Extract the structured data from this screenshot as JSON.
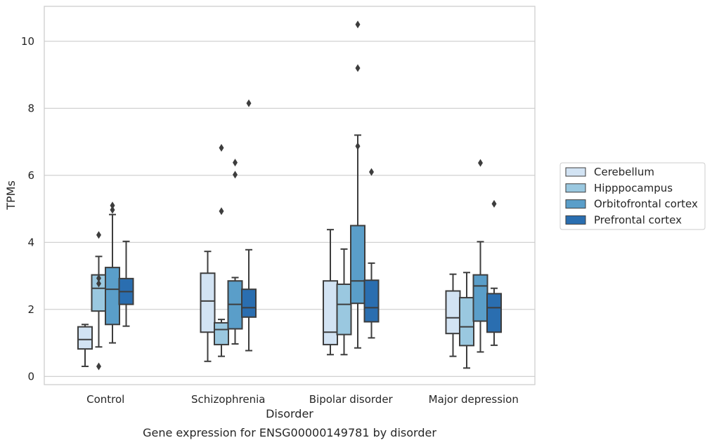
{
  "chart_data": {
    "type": "box",
    "title": "",
    "caption": "Gene expression for ENSG00000149781 by disorder",
    "xlabel": "Disorder",
    "ylabel": "TPMs",
    "ylim": [
      -0.25,
      11.05
    ],
    "yticks": [
      "0",
      "2",
      "4",
      "6",
      "8",
      "10"
    ],
    "grid": "horizontal",
    "legend_position": "right",
    "categories": [
      "Control",
      "Schizophrenia",
      "Bipolar disorder",
      "Major depression"
    ],
    "series": [
      {
        "name": "Cerebellum",
        "color": "#d2e3f3",
        "boxes": [
          {
            "whisker_low": 0.3,
            "q1": 0.82,
            "median": 1.1,
            "q3": 1.48,
            "whisker_high": 1.55,
            "outliers": []
          },
          {
            "whisker_low": 0.45,
            "q1": 1.32,
            "median": 2.25,
            "q3": 3.08,
            "whisker_high": 3.73,
            "outliers": []
          },
          {
            "whisker_low": 0.65,
            "q1": 0.95,
            "median": 1.32,
            "q3": 2.85,
            "whisker_high": 4.38,
            "outliers": []
          },
          {
            "whisker_low": 0.6,
            "q1": 1.28,
            "median": 1.75,
            "q3": 2.55,
            "whisker_high": 3.05,
            "outliers": []
          }
        ]
      },
      {
        "name": "Hipppocampus",
        "color": "#9ac8e0",
        "boxes": [
          {
            "whisker_low": 0.88,
            "q1": 1.95,
            "median": 2.63,
            "q3": 3.03,
            "whisker_high": 3.58,
            "outliers": [
              4.22,
              2.93,
              2.77,
              0.3
            ]
          },
          {
            "whisker_low": 0.6,
            "q1": 0.95,
            "median": 1.4,
            "q3": 1.6,
            "whisker_high": 1.7,
            "outliers": [
              6.82,
              4.93
            ]
          },
          {
            "whisker_low": 0.65,
            "q1": 1.25,
            "median": 2.15,
            "q3": 2.75,
            "whisker_high": 3.8,
            "outliers": []
          },
          {
            "whisker_low": 0.25,
            "q1": 0.92,
            "median": 1.48,
            "q3": 2.35,
            "whisker_high": 3.1,
            "outliers": []
          }
        ]
      },
      {
        "name": "Orbitofrontal cortex",
        "color": "#5a9ec9",
        "boxes": [
          {
            "whisker_low": 1.0,
            "q1": 1.55,
            "median": 2.6,
            "q3": 3.25,
            "whisker_high": 4.83,
            "outliers": [
              5.1,
              4.97
            ]
          },
          {
            "whisker_low": 0.97,
            "q1": 1.42,
            "median": 2.15,
            "q3": 2.85,
            "whisker_high": 2.95,
            "outliers": [
              6.38,
              6.02
            ]
          },
          {
            "whisker_low": 0.85,
            "q1": 2.18,
            "median": 2.85,
            "q3": 4.5,
            "whisker_high": 7.2,
            "outliers": [
              6.87,
              10.5,
              9.2
            ]
          },
          {
            "whisker_low": 0.73,
            "q1": 1.65,
            "median": 2.7,
            "q3": 3.03,
            "whisker_high": 4.02,
            "outliers": [
              6.37
            ]
          }
        ]
      },
      {
        "name": "Prefrontal cortex",
        "color": "#2a6eb0",
        "boxes": [
          {
            "whisker_low": 1.5,
            "q1": 2.15,
            "median": 2.53,
            "q3": 2.92,
            "whisker_high": 4.03,
            "outliers": []
          },
          {
            "whisker_low": 0.77,
            "q1": 1.77,
            "median": 2.05,
            "q3": 2.6,
            "whisker_high": 3.78,
            "outliers": [
              8.15
            ]
          },
          {
            "whisker_low": 1.15,
            "q1": 1.63,
            "median": 2.05,
            "q3": 2.87,
            "whisker_high": 3.38,
            "outliers": [
              6.1
            ]
          },
          {
            "whisker_low": 0.93,
            "q1": 1.32,
            "median": 2.05,
            "q3": 2.47,
            "whisker_high": 2.63,
            "outliers": [
              5.15
            ]
          }
        ]
      }
    ]
  }
}
